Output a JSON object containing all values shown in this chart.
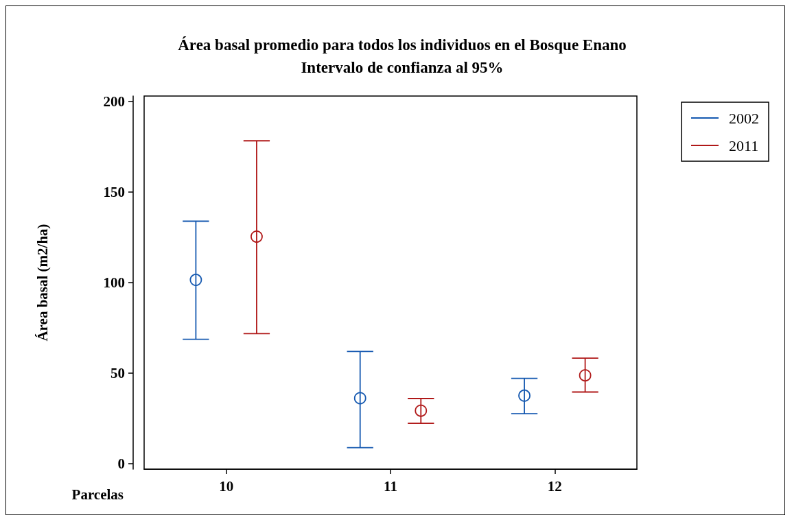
{
  "chart_data": {
    "type": "scatter",
    "title": "Área basal promedio para todos los individuos en el Bosque Enano",
    "subtitle": "Intervalo de confianza al 95%",
    "xlabel": "Parcelas",
    "ylabel": "Área basal (m2/ha)",
    "categories": [
      "10",
      "11",
      "12"
    ],
    "series": [
      {
        "name": "2002",
        "color": "#1458b0",
        "values": [
          101.5,
          36.2,
          37.6
        ],
        "errors": [
          [
            68.7,
            133.9
          ],
          [
            8.9,
            62
          ],
          [
            27.6,
            47.1
          ]
        ]
      },
      {
        "name": "2011",
        "color": "#b01818",
        "values": [
          125.4,
          29.3,
          48.8
        ],
        "errors": [
          [
            71.8,
            178.3
          ],
          [
            22.3,
            36
          ],
          [
            39.6,
            58.3
          ]
        ]
      }
    ],
    "ylim": [
      -3,
      203
    ],
    "yticks": [
      0,
      50,
      100,
      150,
      200
    ],
    "marker": "circle",
    "legend": "top right",
    "grid": false
  }
}
